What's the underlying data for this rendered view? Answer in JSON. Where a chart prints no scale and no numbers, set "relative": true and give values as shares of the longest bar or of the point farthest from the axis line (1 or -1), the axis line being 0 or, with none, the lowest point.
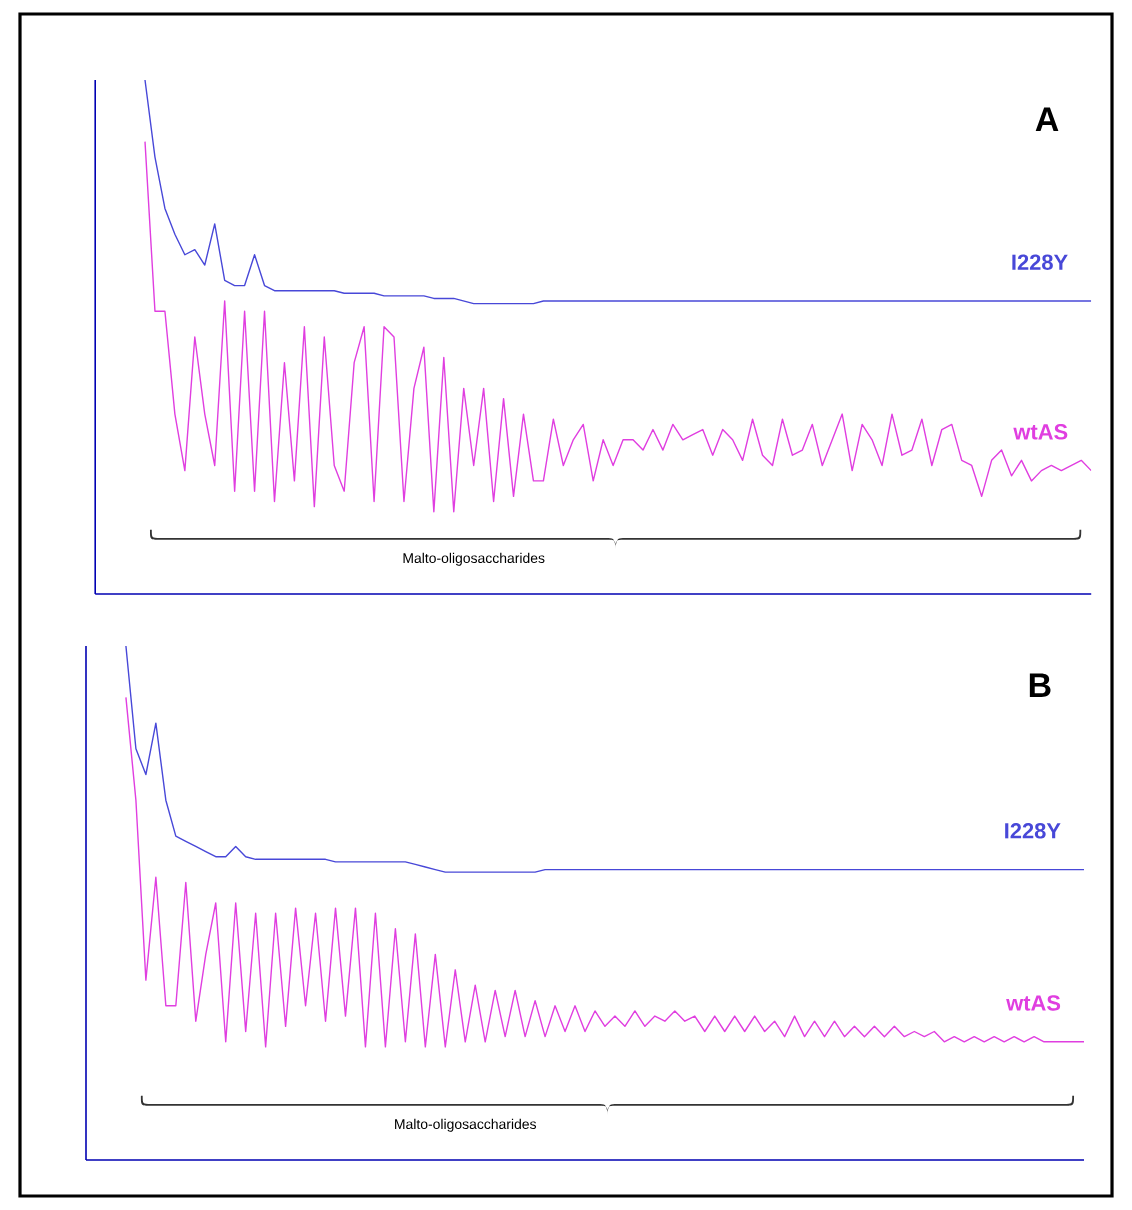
{
  "chart_data": [
    {
      "type": "line",
      "title": "A",
      "relative": true,
      "legend": false,
      "annotations": [
        "Malto-oligosaccharides"
      ],
      "categories": [
        null,
        null,
        null,
        null,
        null,
        null,
        null,
        null,
        null,
        null,
        null,
        null,
        null,
        null,
        null,
        null,
        null,
        null,
        null,
        null,
        null,
        null,
        null,
        null,
        null,
        null,
        null,
        null,
        null,
        null,
        null,
        null,
        null,
        null,
        null,
        null,
        null,
        null,
        null,
        null,
        null,
        null,
        null,
        null,
        null,
        null,
        null,
        null,
        null,
        null,
        null,
        null,
        null,
        null,
        null,
        null,
        null,
        null,
        null,
        null,
        null,
        null,
        null,
        null,
        null,
        null,
        null,
        null,
        null,
        null,
        null,
        null,
        null,
        null,
        null,
        null,
        null,
        null,
        null,
        null,
        null,
        null,
        null,
        null,
        null,
        null,
        null,
        null,
        null,
        null,
        null,
        null,
        null,
        null,
        null,
        null,
        null,
        null,
        null,
        null,
        null
      ],
      "series": [
        {
          "name": "I228Y",
          "color": "#4848d8",
          "values": [
            null,
            null,
            null,
            null,
            null,
            1.0,
            0.85,
            0.75,
            0.7,
            0.66,
            0.67,
            0.64,
            0.72,
            0.61,
            0.6,
            0.6,
            0.66,
            0.6,
            0.59,
            0.59,
            0.59,
            0.59,
            0.59,
            0.59,
            0.59,
            0.585,
            0.585,
            0.585,
            0.585,
            0.58,
            0.58,
            0.58,
            0.58,
            0.58,
            0.575,
            0.575,
            0.575,
            0.57,
            0.565,
            0.565,
            0.565,
            0.565,
            0.565,
            0.565,
            0.565,
            0.57,
            0.57,
            0.57,
            0.57,
            0.57,
            0.57,
            0.57,
            0.57,
            0.57,
            0.57,
            0.57,
            0.57,
            0.57,
            0.57,
            0.57,
            0.57,
            0.57,
            0.57,
            0.57,
            0.57,
            0.57,
            0.57,
            0.57,
            0.57,
            0.57,
            0.57,
            0.57,
            0.57,
            0.57,
            0.57,
            0.57,
            0.57,
            0.57,
            0.57,
            0.57,
            0.57,
            0.57,
            0.57,
            0.57,
            0.57,
            0.57,
            0.57,
            0.57,
            0.57,
            0.57,
            0.57,
            0.57,
            0.57,
            0.57,
            0.57,
            0.57,
            0.57,
            0.57,
            0.57,
            0.57,
            0.57
          ]
        },
        {
          "name": "wtAS",
          "color": "#e03ee0",
          "values": [
            null,
            null,
            null,
            null,
            null,
            0.88,
            0.55,
            0.55,
            0.35,
            0.24,
            0.5,
            0.35,
            0.25,
            0.57,
            0.2,
            0.55,
            0.2,
            0.55,
            0.18,
            0.45,
            0.22,
            0.52,
            0.17,
            0.5,
            0.25,
            0.2,
            0.45,
            0.52,
            0.18,
            0.52,
            0.5,
            0.18,
            0.4,
            0.48,
            0.16,
            0.46,
            0.16,
            0.4,
            0.25,
            0.4,
            0.18,
            0.38,
            0.19,
            0.35,
            0.22,
            0.22,
            0.34,
            0.25,
            0.3,
            0.33,
            0.22,
            0.3,
            0.25,
            0.3,
            0.3,
            0.28,
            0.32,
            0.28,
            0.33,
            0.3,
            0.31,
            0.32,
            0.27,
            0.32,
            0.3,
            0.26,
            0.34,
            0.27,
            0.25,
            0.34,
            0.27,
            0.28,
            0.33,
            0.25,
            0.3,
            0.35,
            0.24,
            0.33,
            0.3,
            0.25,
            0.35,
            0.27,
            0.28,
            0.34,
            0.25,
            0.32,
            0.33,
            0.26,
            0.25,
            0.19,
            0.26,
            0.28,
            0.23,
            0.26,
            0.22,
            0.24,
            0.25,
            0.24,
            0.25,
            0.26,
            0.24
          ]
        }
      ]
    },
    {
      "type": "line",
      "title": "B",
      "relative": true,
      "legend": false,
      "annotations": [
        "Malto-oligosaccharides"
      ],
      "categories": [
        null,
        null,
        null,
        null,
        null,
        null,
        null,
        null,
        null,
        null,
        null,
        null,
        null,
        null,
        null,
        null,
        null,
        null,
        null,
        null,
        null,
        null,
        null,
        null,
        null,
        null,
        null,
        null,
        null,
        null,
        null,
        null,
        null,
        null,
        null,
        null,
        null,
        null,
        null,
        null,
        null,
        null,
        null,
        null,
        null,
        null,
        null,
        null,
        null,
        null,
        null,
        null,
        null,
        null,
        null,
        null,
        null,
        null,
        null,
        null,
        null,
        null,
        null,
        null,
        null,
        null,
        null,
        null,
        null,
        null,
        null,
        null,
        null,
        null,
        null,
        null,
        null,
        null,
        null,
        null,
        null,
        null,
        null,
        null,
        null,
        null,
        null,
        null,
        null,
        null,
        null,
        null,
        null,
        null,
        null,
        null,
        null,
        null,
        null,
        null,
        null
      ],
      "series": [
        {
          "name": "I228Y",
          "color": "#4848d8",
          "values": [
            null,
            null,
            null,
            null,
            1.0,
            0.8,
            0.75,
            0.85,
            0.7,
            0.63,
            0.62,
            0.61,
            0.6,
            0.59,
            0.59,
            0.61,
            0.59,
            0.585,
            0.585,
            0.585,
            0.585,
            0.585,
            0.585,
            0.585,
            0.585,
            0.58,
            0.58,
            0.58,
            0.58,
            0.58,
            0.58,
            0.58,
            0.58,
            0.575,
            0.57,
            0.565,
            0.56,
            0.56,
            0.56,
            0.56,
            0.56,
            0.56,
            0.56,
            0.56,
            0.56,
            0.56,
            0.565,
            0.565,
            0.565,
            0.565,
            0.565,
            0.565,
            0.565,
            0.565,
            0.565,
            0.565,
            0.565,
            0.565,
            0.565,
            0.565,
            0.565,
            0.565,
            0.565,
            0.565,
            0.565,
            0.565,
            0.565,
            0.565,
            0.565,
            0.565,
            0.565,
            0.565,
            0.565,
            0.565,
            0.565,
            0.565,
            0.565,
            0.565,
            0.565,
            0.565,
            0.565,
            0.565,
            0.565,
            0.565,
            0.565,
            0.565,
            0.565,
            0.565,
            0.565,
            0.565,
            0.565,
            0.565,
            0.565,
            0.565,
            0.565,
            0.565,
            0.565,
            0.565,
            0.565,
            0.565,
            0.565
          ]
        },
        {
          "name": "wtAS",
          "color": "#e03ee0",
          "values": [
            null,
            null,
            null,
            null,
            0.9,
            0.7,
            0.35,
            0.55,
            0.3,
            0.3,
            0.54,
            0.27,
            0.4,
            0.5,
            0.23,
            0.5,
            0.25,
            0.48,
            0.22,
            0.48,
            0.26,
            0.49,
            0.3,
            0.48,
            0.27,
            0.49,
            0.28,
            0.49,
            0.22,
            0.48,
            0.22,
            0.45,
            0.23,
            0.44,
            0.22,
            0.4,
            0.22,
            0.37,
            0.23,
            0.34,
            0.23,
            0.33,
            0.24,
            0.33,
            0.24,
            0.31,
            0.24,
            0.3,
            0.25,
            0.3,
            0.25,
            0.29,
            0.26,
            0.28,
            0.26,
            0.29,
            0.26,
            0.28,
            0.27,
            0.29,
            0.27,
            0.28,
            0.25,
            0.28,
            0.25,
            0.28,
            0.25,
            0.28,
            0.25,
            0.27,
            0.24,
            0.28,
            0.24,
            0.27,
            0.24,
            0.27,
            0.24,
            0.26,
            0.24,
            0.26,
            0.24,
            0.26,
            0.24,
            0.25,
            0.24,
            0.25,
            0.23,
            0.24,
            0.23,
            0.24,
            0.23,
            0.24,
            0.23,
            0.24,
            0.23,
            0.24,
            0.23,
            0.23,
            0.23,
            0.23,
            0.23
          ]
        }
      ]
    }
  ]
}
